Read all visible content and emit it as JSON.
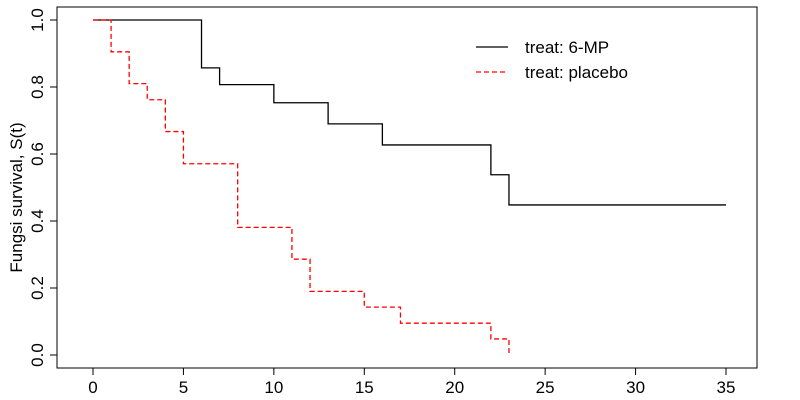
{
  "chart_data": {
    "type": "line",
    "step": true,
    "ylabel": "Fungsi survival, S(t)",
    "xlim": [
      0,
      35
    ],
    "ylim": [
      0,
      1
    ],
    "x_ticks": [
      "0",
      "5",
      "10",
      "15",
      "20",
      "25",
      "30",
      "35"
    ],
    "y_ticks": [
      "0.0",
      "0.2",
      "0.4",
      "0.6",
      "0.8",
      "1.0"
    ],
    "grid": false,
    "legend_position": "top-right",
    "series": [
      {
        "name": "treat: 6-MP",
        "color": "#000000",
        "dash": "solid",
        "x": [
          0,
          6,
          7,
          10,
          13,
          16,
          22,
          23,
          35
        ],
        "y": [
          1.0,
          0.857,
          0.807,
          0.753,
          0.69,
          0.627,
          0.538,
          0.448,
          0.448
        ]
      },
      {
        "name": "treat: placebo",
        "color": "#ff0000",
        "dash": "dashed",
        "x": [
          0,
          1,
          2,
          3,
          4,
          5,
          8,
          11,
          12,
          15,
          17,
          22,
          23
        ],
        "y": [
          1.0,
          0.905,
          0.81,
          0.762,
          0.667,
          0.571,
          0.381,
          0.286,
          0.19,
          0.143,
          0.095,
          0.048,
          0.0
        ]
      }
    ]
  }
}
